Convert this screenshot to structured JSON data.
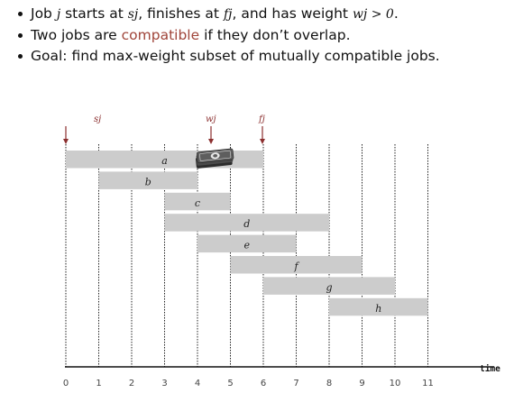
{
  "bullets": [
    {
      "t1": "Job ",
      "i1": "j",
      "t2": " starts at ",
      "i2": "sj",
      "t3": ", finishes at ",
      "i3": "fj",
      "t4": ", and has weight ",
      "i4": "wj > 0",
      "t5": "."
    },
    {
      "t1": "Two jobs are ",
      "accent": "compatible",
      "t2": " if they don’t overlap."
    },
    {
      "t1": "Goal:  find max-weight subset of mutually compatible jobs."
    }
  ],
  "annotations": {
    "sj": "sj",
    "wj": "wj",
    "fj": "fj"
  },
  "axis": {
    "label": "time",
    "ticks": [
      0,
      1,
      2,
      3,
      4,
      5,
      6,
      7,
      8,
      9,
      10,
      11
    ]
  },
  "jobs": [
    {
      "name": "a",
      "start": 0,
      "end": 6
    },
    {
      "name": "b",
      "start": 1,
      "end": 4
    },
    {
      "name": "c",
      "start": 3,
      "end": 5
    },
    {
      "name": "d",
      "start": 3,
      "end": 8
    },
    {
      "name": "e",
      "start": 4,
      "end": 7
    },
    {
      "name": "f",
      "start": 5,
      "end": 9
    },
    {
      "name": "g",
      "start": 6,
      "end": 10
    },
    {
      "name": "h",
      "start": 8,
      "end": 11
    }
  ],
  "colors": {
    "bar": "#cccccc",
    "arrow": "#8b2f2f",
    "accent": "#a0453a",
    "money": "#3a3a3a"
  },
  "icons": {
    "weight": "money-stack-icon"
  }
}
